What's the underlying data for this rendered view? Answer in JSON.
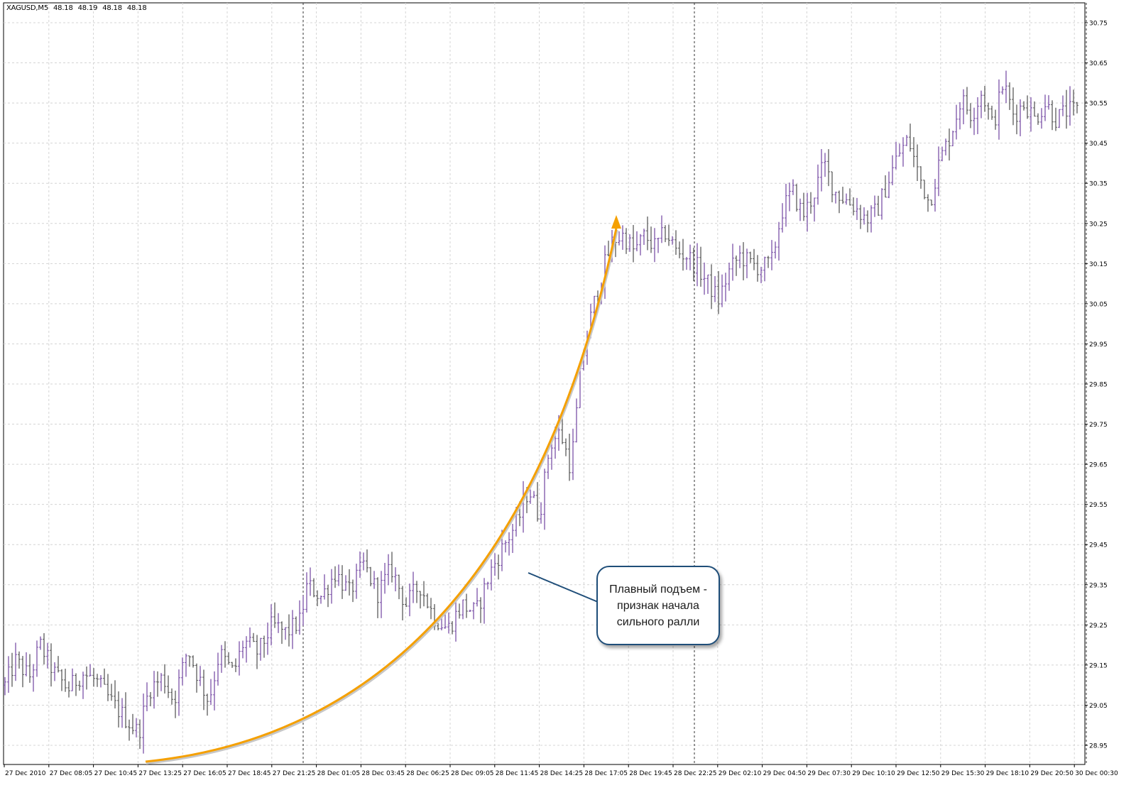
{
  "header": {
    "symbol": "XAGUSD,M5",
    "quotes": [
      "48.18",
      "48.19",
      "48.18",
      "48.18"
    ]
  },
  "annotation": {
    "lines": [
      "Плавный подъем -",
      "признак начала",
      "сильного ралли"
    ],
    "arrow_color": "#f5a000",
    "border_color": "#1f4e79"
  },
  "chart_data": {
    "type": "ohlc",
    "title": "",
    "timeframe": "M5",
    "y_axis_side": "right",
    "ylim": [
      28.925,
      30.785
    ],
    "y_ticks": [
      "30.75",
      "30.65",
      "30.55",
      "30.45",
      "30.35",
      "30.25",
      "30.15",
      "30.05",
      "29.95",
      "29.85",
      "29.75",
      "29.65",
      "29.55",
      "29.45",
      "29.35",
      "29.25",
      "29.15",
      "29.05",
      "28.95"
    ],
    "x_ticks": [
      "27 Dec 2010",
      "27 Dec 08:05",
      "27 Dec 10:45",
      "27 Dec 13:25",
      "27 Dec 16:05",
      "27 Dec 18:45",
      "27 Dec 21:25",
      "28 Dec 01:05",
      "28 Dec 03:45",
      "28 Dec 06:25",
      "28 Dec 09:05",
      "28 Dec 11:45",
      "28 Dec 14:25",
      "28 Dec 17:05",
      "28 Dec 19:45",
      "28 Dec 22:25",
      "29 Dec 02:10",
      "29 Dec 04:50",
      "29 Dec 07:30",
      "29 Dec 10:10",
      "29 Dec 12:50",
      "29 Dec 15:30",
      "29 Dec 18:10",
      "29 Dec 20:50",
      "30 Dec 00:30"
    ],
    "grid": true,
    "period_separators_after_tick": [
      "27 Dec 21:25",
      "28 Dec 22:25",
      "29 Dec 20:50"
    ],
    "bar_colors": {
      "up": "#7b52a8",
      "down": "#5a5a5a"
    },
    "price_path": [
      [
        0,
        29.1
      ],
      [
        3,
        29.16
      ],
      [
        7,
        29.12
      ],
      [
        10,
        29.2
      ],
      [
        14,
        29.13
      ],
      [
        18,
        29.09
      ],
      [
        22,
        29.13
      ],
      [
        26,
        29.11
      ],
      [
        30,
        29.06
      ],
      [
        35,
        29.01
      ],
      [
        38,
        28.98
      ],
      [
        41,
        29.09
      ],
      [
        45,
        29.12
      ],
      [
        48,
        29.06
      ],
      [
        52,
        29.19
      ],
      [
        55,
        29.12
      ],
      [
        58,
        29.06
      ],
      [
        61,
        29.18
      ],
      [
        65,
        29.13
      ],
      [
        68,
        29.21
      ],
      [
        72,
        29.18
      ],
      [
        76,
        29.25
      ],
      [
        80,
        29.23
      ],
      [
        84,
        29.26
      ],
      [
        86,
        29.35
      ],
      [
        90,
        29.32
      ],
      [
        94,
        29.38
      ],
      [
        98,
        29.33
      ],
      [
        102,
        29.4
      ],
      [
        106,
        29.33
      ],
      [
        110,
        29.39
      ],
      [
        114,
        29.3
      ],
      [
        118,
        29.35
      ],
      [
        122,
        29.27
      ],
      [
        126,
        29.24
      ],
      [
        130,
        29.3
      ],
      [
        134,
        29.28
      ],
      [
        138,
        29.38
      ],
      [
        142,
        29.45
      ],
      [
        146,
        29.51
      ],
      [
        149,
        29.59
      ],
      [
        152,
        29.52
      ],
      [
        155,
        29.7
      ],
      [
        158,
        29.73
      ],
      [
        161,
        29.64
      ],
      [
        164,
        29.9
      ],
      [
        167,
        30.03
      ],
      [
        170,
        30.13
      ],
      [
        173,
        30.21
      ],
      [
        176,
        30.22
      ],
      [
        179,
        30.18
      ],
      [
        182,
        30.22
      ],
      [
        185,
        30.19
      ],
      [
        188,
        30.23
      ],
      [
        191,
        30.18
      ],
      [
        194,
        30.17
      ],
      [
        197,
        30.14
      ],
      [
        200,
        30.1
      ],
      [
        203,
        30.06
      ],
      [
        206,
        30.13
      ],
      [
        209,
        30.17
      ],
      [
        212,
        30.15
      ],
      [
        215,
        30.14
      ],
      [
        218,
        30.15
      ],
      [
        221,
        30.28
      ],
      [
        224,
        30.33
      ],
      [
        227,
        30.27
      ],
      [
        230,
        30.32
      ],
      [
        233,
        30.4
      ],
      [
        236,
        30.33
      ],
      [
        239,
        30.31
      ],
      [
        242,
        30.29
      ],
      [
        245,
        30.26
      ],
      [
        248,
        30.28
      ],
      [
        251,
        30.35
      ],
      [
        254,
        30.42
      ],
      [
        257,
        30.46
      ],
      [
        260,
        30.37
      ],
      [
        263,
        30.3
      ],
      [
        266,
        30.41
      ],
      [
        269,
        30.47
      ],
      [
        272,
        30.56
      ],
      [
        275,
        30.52
      ],
      [
        278,
        30.58
      ],
      [
        281,
        30.49
      ],
      [
        284,
        30.6
      ],
      [
        287,
        30.52
      ],
      [
        290,
        30.55
      ],
      [
        293,
        30.51
      ],
      [
        296,
        30.55
      ],
      [
        299,
        30.51
      ],
      [
        302,
        30.53
      ],
      [
        305,
        30.53
      ]
    ]
  }
}
